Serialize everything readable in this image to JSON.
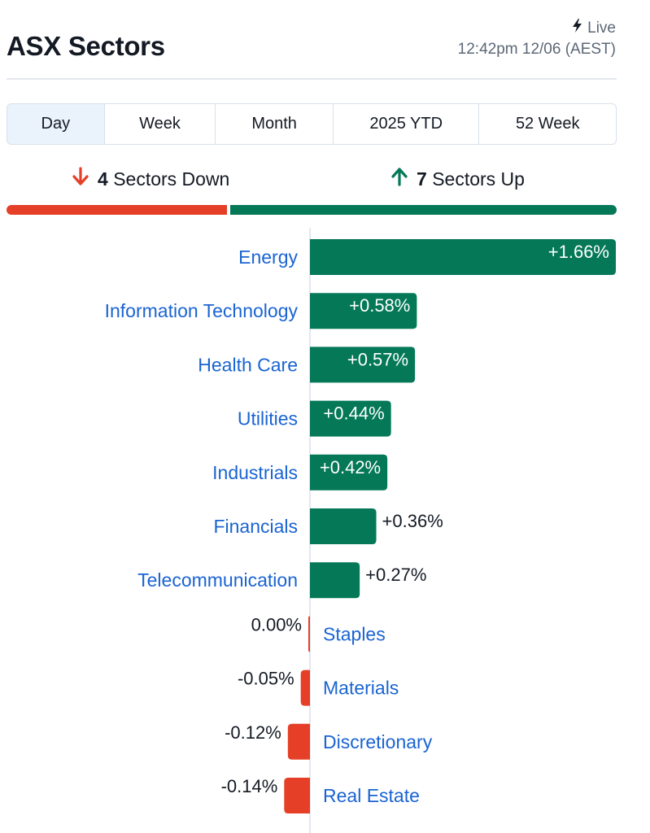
{
  "header": {
    "title": "ASX Sectors",
    "live_label": "Live",
    "timestamp": "12:42pm 12/06 (AEST)"
  },
  "tabs": [
    {
      "label": "Day",
      "active": true
    },
    {
      "label": "Week",
      "active": false
    },
    {
      "label": "Month",
      "active": false
    },
    {
      "label": "2025 YTD",
      "active": false
    },
    {
      "label": "52 Week",
      "active": false
    }
  ],
  "summary": {
    "down_count": "4",
    "down_label": "Sectors Down",
    "up_count": "7",
    "up_label": "Sectors Up",
    "down_fraction": 0.364
  },
  "colors": {
    "up": "#047857",
    "down": "#e54027",
    "label": "#1a64d2",
    "text": "#141a24",
    "muted": "#5c6776"
  },
  "chart_data": {
    "type": "bar",
    "orientation": "horizontal",
    "unit": "%",
    "categories": [
      "Energy",
      "Information Technology",
      "Health Care",
      "Utilities",
      "Industrials",
      "Financials",
      "Telecommunication",
      "Staples",
      "Materials",
      "Discretionary",
      "Real Estate"
    ],
    "values": [
      1.66,
      0.58,
      0.57,
      0.44,
      0.42,
      0.36,
      0.27,
      0.0,
      -0.05,
      -0.12,
      -0.14
    ],
    "value_labels": [
      "+1.66%",
      "+0.58%",
      "+0.57%",
      "+0.44%",
      "+0.42%",
      "+0.36%",
      "+0.27%",
      "0.00%",
      "-0.05%",
      "-0.12%",
      "-0.14%"
    ],
    "max_abs": 1.66
  }
}
